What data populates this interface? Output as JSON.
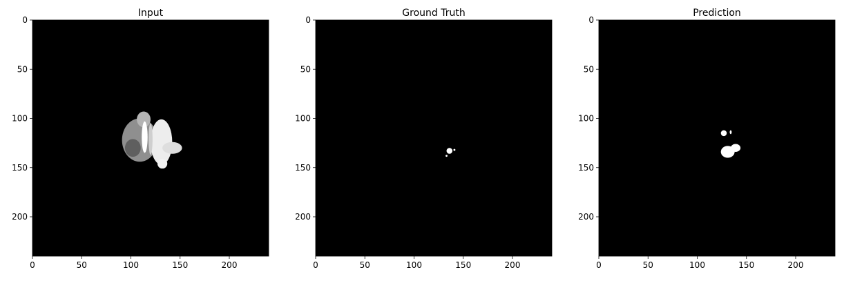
{
  "chart_data": [
    {
      "type": "heatmap",
      "title": "Input",
      "xlim": [
        0,
        240
      ],
      "ylim": [
        240,
        0
      ],
      "xticks": [
        0,
        50,
        100,
        150,
        200
      ],
      "yticks": [
        0,
        50,
        100,
        150,
        200
      ],
      "colormap": "gray",
      "background": "#000000",
      "blobs": [
        {
          "cx": 109,
          "cy": 122,
          "rx": 18,
          "ry": 22,
          "fill": "#8f8f8f"
        },
        {
          "cx": 102,
          "cy": 130,
          "rx": 8,
          "ry": 9,
          "fill": "#5f5f5f"
        },
        {
          "cx": 113,
          "cy": 101,
          "rx": 7,
          "ry": 8,
          "fill": "#b4b4b4"
        },
        {
          "cx": 131,
          "cy": 124,
          "rx": 11,
          "ry": 23,
          "fill": "#ededed"
        },
        {
          "cx": 142,
          "cy": 130,
          "rx": 10,
          "ry": 6,
          "fill": "#dedede"
        },
        {
          "cx": 132,
          "cy": 146,
          "rx": 5,
          "ry": 5,
          "fill": "#f2f2f2"
        },
        {
          "cx": 114,
          "cy": 119,
          "rx": 3,
          "ry": 16,
          "fill": "#ffffff"
        },
        {
          "cx": 120,
          "cy": 121,
          "rx": 2,
          "ry": 16,
          "fill": "#cfcfcf"
        }
      ]
    },
    {
      "type": "heatmap",
      "title": "Ground Truth",
      "xlim": [
        0,
        240
      ],
      "ylim": [
        240,
        0
      ],
      "xticks": [
        0,
        50,
        100,
        150,
        200
      ],
      "yticks": [
        0,
        50,
        100,
        150,
        200
      ],
      "colormap": "gray",
      "background": "#000000",
      "blobs": [
        {
          "cx": 136,
          "cy": 133,
          "rx": 3,
          "ry": 3,
          "fill": "#ffffff"
        },
        {
          "cx": 133,
          "cy": 138,
          "rx": 1,
          "ry": 1,
          "fill": "#ffffff"
        },
        {
          "cx": 141,
          "cy": 132,
          "rx": 1,
          "ry": 1,
          "fill": "#ffffff"
        }
      ]
    },
    {
      "type": "heatmap",
      "title": "Prediction",
      "xlim": [
        0,
        240
      ],
      "ylim": [
        240,
        0
      ],
      "xticks": [
        0,
        50,
        100,
        150,
        200
      ],
      "yticks": [
        0,
        50,
        100,
        150,
        200
      ],
      "colormap": "gray",
      "background": "#000000",
      "blobs": [
        {
          "cx": 127,
          "cy": 115,
          "rx": 3,
          "ry": 3,
          "fill": "#ffffff"
        },
        {
          "cx": 134,
          "cy": 114,
          "rx": 1,
          "ry": 2,
          "fill": "#ffffff"
        },
        {
          "cx": 131,
          "cy": 134,
          "rx": 7,
          "ry": 6,
          "fill": "#ffffff"
        },
        {
          "cx": 139,
          "cy": 130,
          "rx": 5,
          "ry": 4,
          "fill": "#ffffff"
        }
      ]
    }
  ]
}
